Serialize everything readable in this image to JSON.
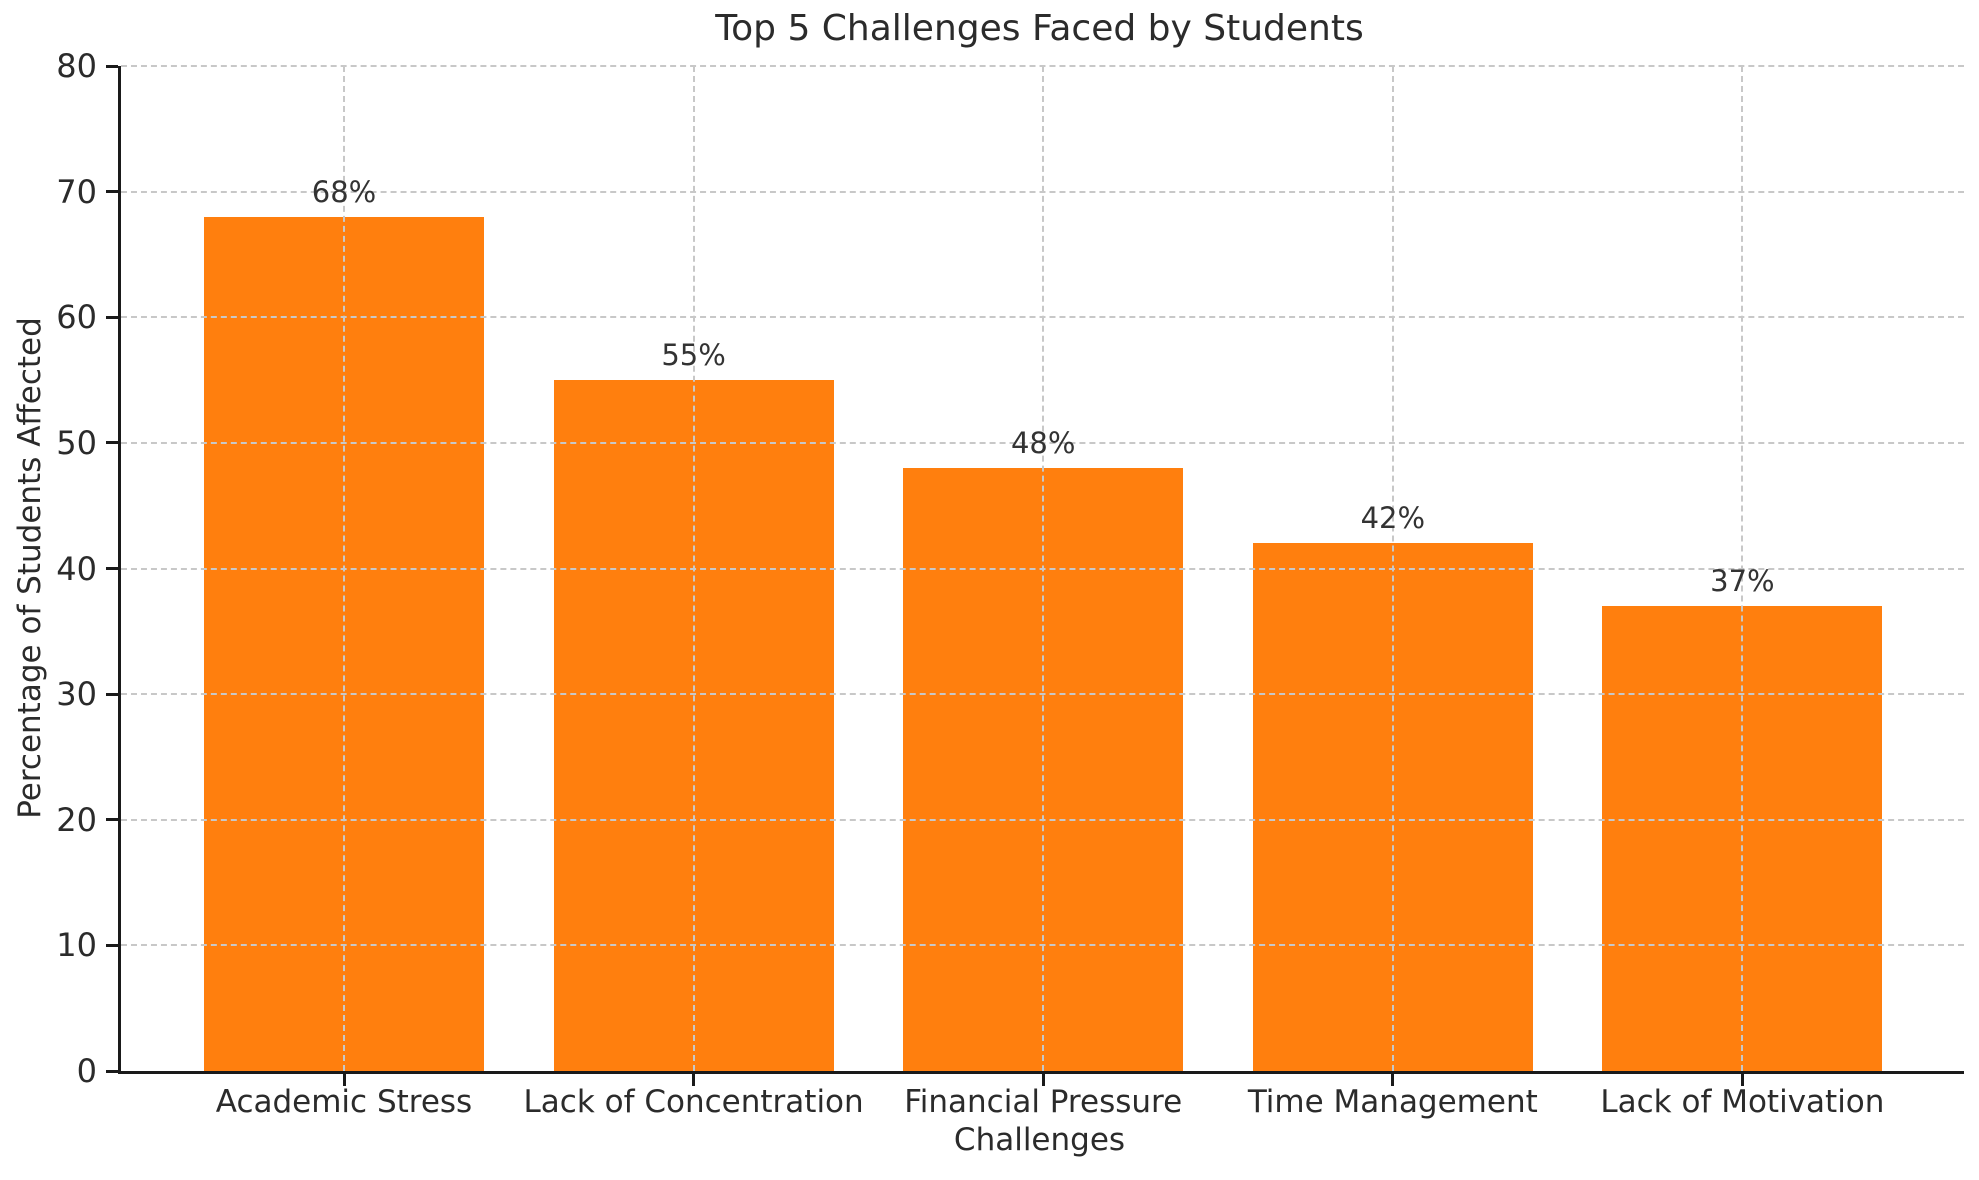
{
  "chart_data": {
    "type": "bar",
    "title": "Top 5 Challenges Faced by Students",
    "xlabel": "Challenges",
    "ylabel": "Percentage of Students Affected",
    "categories": [
      "Academic Stress",
      "Lack of Concentration",
      "Financial Pressure",
      "Time Management",
      "Lack of Motivation"
    ],
    "values": [
      68,
      55,
      48,
      42,
      37
    ],
    "value_labels": [
      "68%",
      "55%",
      "48%",
      "42%",
      "37%"
    ],
    "ylim": [
      0,
      80
    ],
    "yticks": [
      0,
      10,
      20,
      30,
      40,
      50,
      60,
      70,
      80
    ],
    "bar_color": "#ff7f0e",
    "grid": "dashed light-gray horizontal and vertical gridlines drawn over bars",
    "legend": "none"
  },
  "style": {
    "axis_color": "#1a1a1a",
    "text_color": "#2b2b2b",
    "grid_color": "#c8c8c8",
    "background": "#ffffff"
  }
}
